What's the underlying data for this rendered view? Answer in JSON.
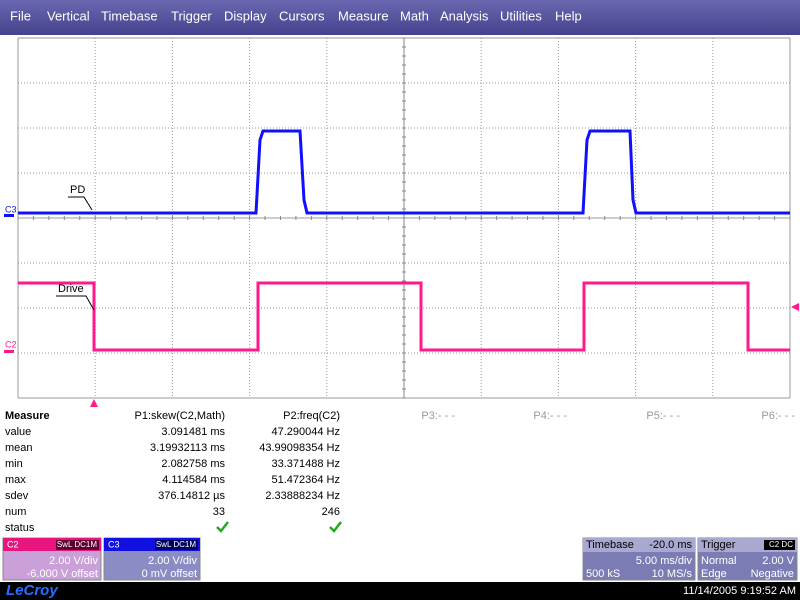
{
  "menu": [
    "File",
    "Vertical",
    "Timebase",
    "Trigger",
    "Display",
    "Cursors",
    "Measure",
    "Math",
    "Analysis",
    "Utilities",
    "Help"
  ],
  "traces": {
    "c3": {
      "label": "C3",
      "name": "PD"
    },
    "c2": {
      "label": "C2",
      "name": "Drive"
    }
  },
  "measure": {
    "title": "Measure",
    "columns": [
      "P1:skew(C2,Math)",
      "P2:freq(C2)",
      "P3:- - -",
      "P4:- - -",
      "P5:- - -",
      "P6:- - -"
    ],
    "rows": [
      {
        "label": "value",
        "cells": [
          "3.091481 ms",
          "47.290044 Hz"
        ]
      },
      {
        "label": "mean",
        "cells": [
          "3.19932113 ms",
          "43.99098354 Hz"
        ]
      },
      {
        "label": "min",
        "cells": [
          "2.082758 ms",
          "33.371488 Hz"
        ]
      },
      {
        "label": "max",
        "cells": [
          "4.114584 ms",
          "51.472364 Hz"
        ]
      },
      {
        "label": "sdev",
        "cells": [
          "376.14812 µs",
          "2.33888234 Hz"
        ]
      },
      {
        "label": "num",
        "cells": [
          "33",
          "246"
        ]
      }
    ],
    "status_label": "status"
  },
  "channels": [
    {
      "name": "C2",
      "coupling": "SwL DC1M",
      "scale": "2.00 V/div",
      "offset": "-6.000 V offset"
    },
    {
      "name": "C3",
      "coupling": "SwL DC1M",
      "scale": "2.00 V/div",
      "offset": "0 mV offset"
    }
  ],
  "timebase": {
    "title": "Timebase",
    "delay": "-20.0 ms",
    "scale": "5.00 ms/div",
    "samples": "500 kS",
    "rate": "10 MS/s"
  },
  "trigger": {
    "title": "Trigger",
    "source": "C2 DC",
    "mode": "Normal",
    "level": "2.00 V",
    "type": "Edge",
    "slope": "Negative"
  },
  "brand": "LeCroy",
  "timestamp": "11/14/2005 9:19:52 AM"
}
